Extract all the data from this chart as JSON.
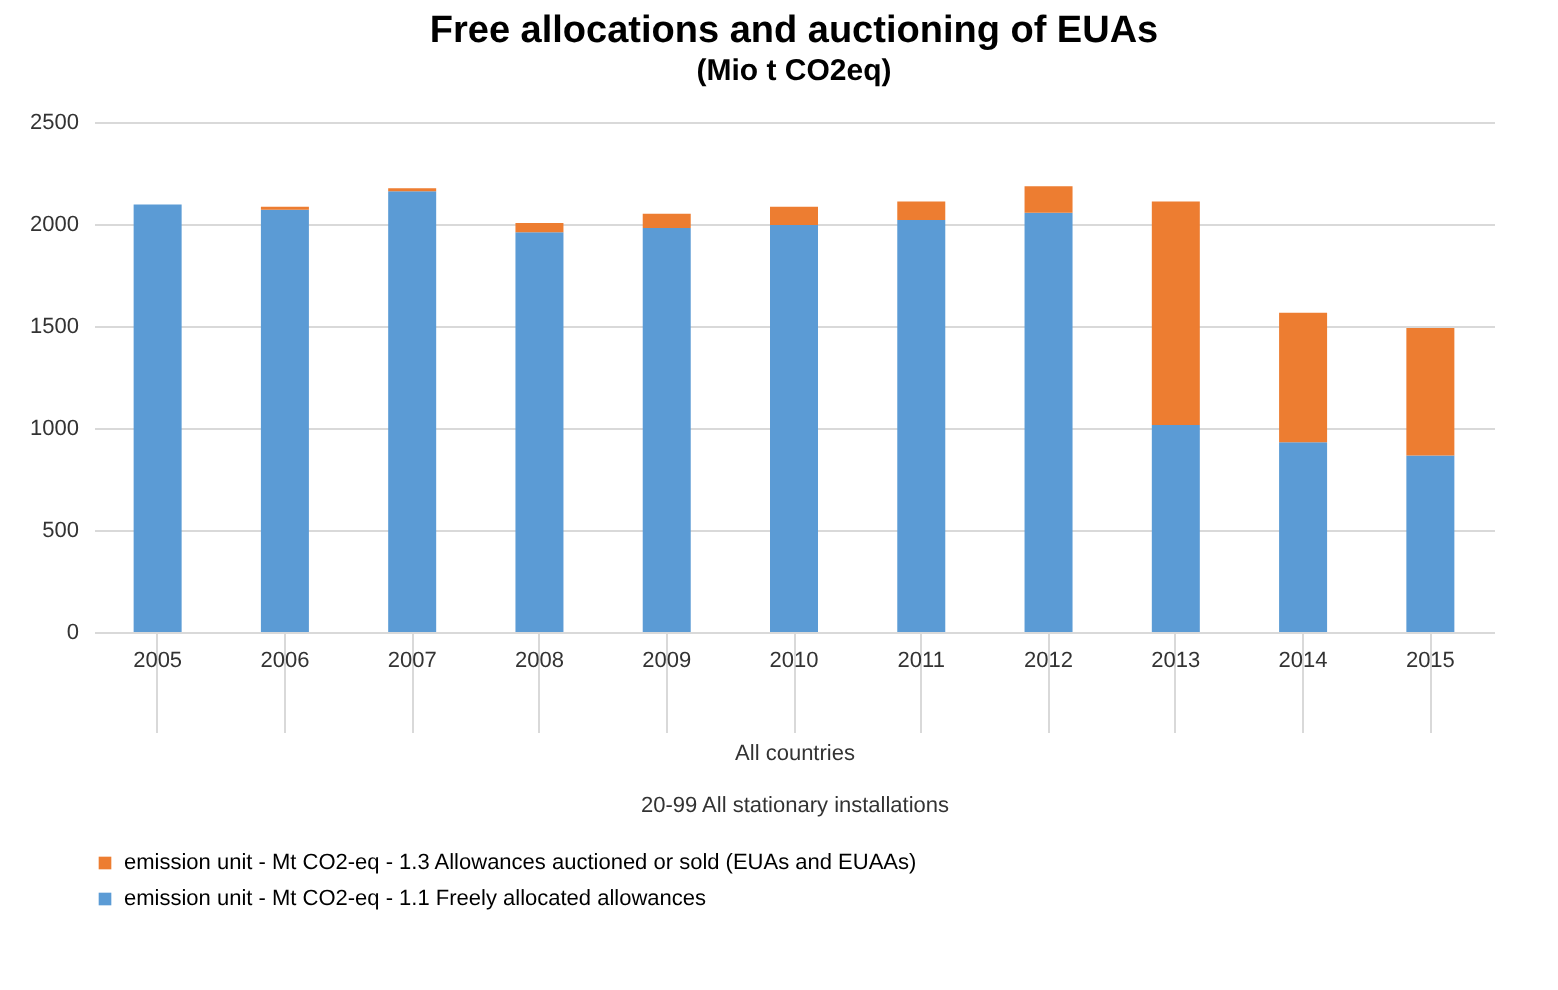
{
  "chart_data": {
    "type": "bar",
    "title": "Free allocations and auctioning of EUAs",
    "subtitle": "(Mio t  CO2eq)",
    "xlabel": "All countries",
    "annotations": [
      "20-99 All stationary installations"
    ],
    "categories": [
      "2005",
      "2006",
      "2007",
      "2008",
      "2009",
      "2010",
      "2011",
      "2012",
      "2013",
      "2014",
      "2015"
    ],
    "stacked": true,
    "series": [
      {
        "name": "emission unit - Mt CO2-eq - 1.1 Freely allocated allowances",
        "color": "#5b9bd5",
        "values": [
          2095,
          2070,
          2160,
          1960,
          1980,
          1995,
          2020,
          2055,
          1015,
          930,
          865
        ]
      },
      {
        "name": "emission unit - Mt CO2-eq - 1.3 Allowances auctioned or sold (EUAs and EUAAs)",
        "color": "#ed7d31",
        "values": [
          0,
          15,
          15,
          45,
          70,
          90,
          90,
          130,
          1095,
          635,
          625
        ]
      }
    ],
    "ylim": [
      0,
      2500
    ],
    "yticks": [
      0,
      500,
      1000,
      1500,
      2000,
      2500
    ],
    "grid": "y",
    "legend": "bottom"
  }
}
